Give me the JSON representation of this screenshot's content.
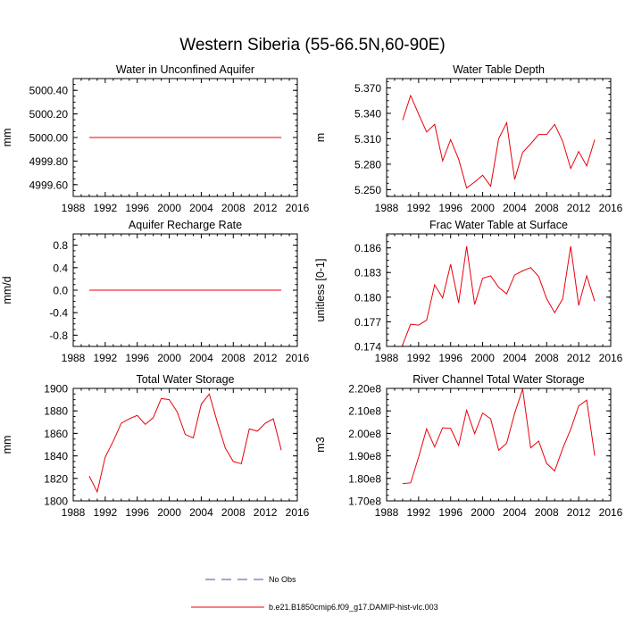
{
  "figure": {
    "title": "Western Siberia (55-66.5N,60-90E)"
  },
  "legend": {
    "entries": [
      {
        "label": "No Obs",
        "style": "dashed",
        "color": "#4a4ab0"
      },
      {
        "label": "b.e21.B1850cmip6.f09_g17.DAMIP-hist-vlc.003",
        "style": "solid",
        "color": "#e8000b"
      }
    ]
  },
  "chart_data": [
    {
      "type": "line",
      "title": "Water in Unconfined Aquifer",
      "ylabel": "mm",
      "xlim": [
        1988,
        2016
      ],
      "ylim": [
        4999.5,
        5000.5
      ],
      "yticks": [
        "4999.60",
        "4999.80",
        "5000.00",
        "5000.20",
        "5000.40"
      ],
      "xticks": [
        "1988",
        "1992",
        "1996",
        "2000",
        "2004",
        "2008",
        "2012",
        "2016"
      ],
      "series": [
        {
          "color": "#e8000b",
          "x": [
            1990,
            1991,
            1992,
            1993,
            1994,
            1995,
            1996,
            1997,
            1998,
            1999,
            2000,
            2001,
            2002,
            2003,
            2004,
            2005,
            2006,
            2007,
            2008,
            2009,
            2010,
            2011,
            2012,
            2013,
            2014
          ],
          "values": [
            5000,
            5000,
            5000,
            5000,
            5000,
            5000,
            5000,
            5000,
            5000,
            5000,
            5000,
            5000,
            5000,
            5000,
            5000,
            5000,
            5000,
            5000,
            5000,
            5000,
            5000,
            5000,
            5000,
            5000,
            5000
          ]
        }
      ]
    },
    {
      "type": "line",
      "title": "Water Table Depth",
      "ylabel": "m",
      "xlim": [
        1988,
        2016
      ],
      "ylim": [
        5.242,
        5.381
      ],
      "yticks": [
        "5.250",
        "5.280",
        "5.310",
        "5.340",
        "5.370"
      ],
      "xticks": [
        "1988",
        "1992",
        "1996",
        "2000",
        "2004",
        "2008",
        "2012",
        "2016"
      ],
      "series": [
        {
          "color": "#e8000b",
          "x": [
            1990,
            1991,
            1992,
            1993,
            1994,
            1995,
            1996,
            1997,
            1998,
            1999,
            2000,
            2001,
            2002,
            2003,
            2004,
            2005,
            2006,
            2007,
            2008,
            2009,
            2010,
            2011,
            2012,
            2013,
            2014
          ],
          "values": [
            5.332,
            5.361,
            5.339,
            5.318,
            5.327,
            5.284,
            5.309,
            5.286,
            5.252,
            5.259,
            5.267,
            5.254,
            5.31,
            5.329,
            5.262,
            5.294,
            5.304,
            5.315,
            5.315,
            5.327,
            5.307,
            5.275,
            5.295,
            5.278,
            5.309
          ]
        }
      ]
    },
    {
      "type": "line",
      "title": "Aquifer Recharge Rate",
      "ylabel": "mm/d",
      "xlim": [
        1988,
        2016
      ],
      "ylim": [
        -1.0,
        1.0
      ],
      "yticks": [
        "-0.8",
        "-0.4",
        "0.0",
        "0.4",
        "0.8"
      ],
      "xticks": [
        "1988",
        "1992",
        "1996",
        "2000",
        "2004",
        "2008",
        "2012",
        "2016"
      ],
      "series": [
        {
          "color": "#e8000b",
          "x": [
            1990,
            1991,
            1992,
            1993,
            1994,
            1995,
            1996,
            1997,
            1998,
            1999,
            2000,
            2001,
            2002,
            2003,
            2004,
            2005,
            2006,
            2007,
            2008,
            2009,
            2010,
            2011,
            2012,
            2013,
            2014
          ],
          "values": [
            0,
            0,
            0,
            0,
            0,
            0,
            0,
            0,
            0,
            0,
            0,
            0,
            0,
            0,
            0,
            0,
            0,
            0,
            0,
            0,
            0,
            0,
            0,
            0,
            0
          ]
        }
      ]
    },
    {
      "type": "line",
      "title": "Frac Water Table at Surface",
      "ylabel": "unitless [0-1]",
      "xlim": [
        1988,
        2016
      ],
      "ylim": [
        0.174,
        0.1877
      ],
      "yticks": [
        "0.174",
        "0.177",
        "0.180",
        "0.183",
        "0.186"
      ],
      "xticks": [
        "1988",
        "1992",
        "1996",
        "2000",
        "2004",
        "2008",
        "2012",
        "2016"
      ],
      "series": [
        {
          "color": "#e8000b",
          "x": [
            1990,
            1991,
            1992,
            1993,
            1994,
            1995,
            1996,
            1997,
            1998,
            1999,
            2000,
            2001,
            2002,
            2003,
            2004,
            2005,
            2006,
            2007,
            2008,
            2009,
            2010,
            2011,
            2012,
            2013,
            2014
          ],
          "values": [
            0.1742,
            0.1767,
            0.1766,
            0.1772,
            0.1815,
            0.1799,
            0.184,
            0.1793,
            0.1862,
            0.1791,
            0.1823,
            0.1826,
            0.1812,
            0.1804,
            0.1827,
            0.1832,
            0.1836,
            0.1825,
            0.1798,
            0.1781,
            0.1798,
            0.1862,
            0.179,
            0.1826,
            0.1795
          ]
        }
      ]
    },
    {
      "type": "line",
      "title": "Total Water Storage",
      "ylabel": "mm",
      "xlim": [
        1988,
        2016
      ],
      "ylim": [
        1800,
        1900
      ],
      "yticks": [
        "1800",
        "1820",
        "1840",
        "1860",
        "1880",
        "1900"
      ],
      "xticks": [
        "1988",
        "1992",
        "1996",
        "2000",
        "2004",
        "2008",
        "2012",
        "2016"
      ],
      "series": [
        {
          "color": "#e8000b",
          "x": [
            1990,
            1991,
            1992,
            1993,
            1994,
            1995,
            1996,
            1997,
            1998,
            1999,
            2000,
            2001,
            2002,
            2003,
            2004,
            2005,
            2006,
            2007,
            2008,
            2009,
            2010,
            2011,
            2012,
            2013,
            2014
          ],
          "values": [
            1822,
            1808,
            1839,
            1853,
            1869,
            1873,
            1876,
            1868,
            1874,
            1891,
            1890,
            1879,
            1859,
            1856,
            1886,
            1895,
            1870,
            1847,
            1835,
            1833,
            1864,
            1862,
            1869,
            1873,
            1845
          ]
        }
      ]
    },
    {
      "type": "line",
      "title": "River Channel Total Water Storage",
      "ylabel": "m3",
      "xlim": [
        1988,
        2016
      ],
      "ylim": [
        170000000,
        220000000
      ],
      "yticks": [
        "1.70e8",
        "1.80e8",
        "1.90e8",
        "2.00e8",
        "2.10e8",
        "2.20e8"
      ],
      "xticks": [
        "1988",
        "1992",
        "1996",
        "2000",
        "2004",
        "2008",
        "2012",
        "2016"
      ],
      "series": [
        {
          "color": "#e8000b",
          "x": [
            1990,
            1991,
            1992,
            1993,
            1994,
            1995,
            1996,
            1997,
            1998,
            1999,
            2000,
            2001,
            2002,
            2003,
            2004,
            2005,
            2006,
            2007,
            2008,
            2009,
            2010,
            2011,
            2012,
            2013,
            2014
          ],
          "values": [
            177700000,
            178000000,
            189500000,
            202000000,
            194000000,
            202500000,
            202200000,
            194600000,
            210300000,
            199900000,
            209000000,
            206500000,
            192500000,
            195600000,
            209000000,
            219700000,
            193600000,
            196600000,
            186600000,
            183300000,
            193300000,
            201800000,
            212200000,
            214800000,
            190100000
          ]
        }
      ]
    }
  ]
}
